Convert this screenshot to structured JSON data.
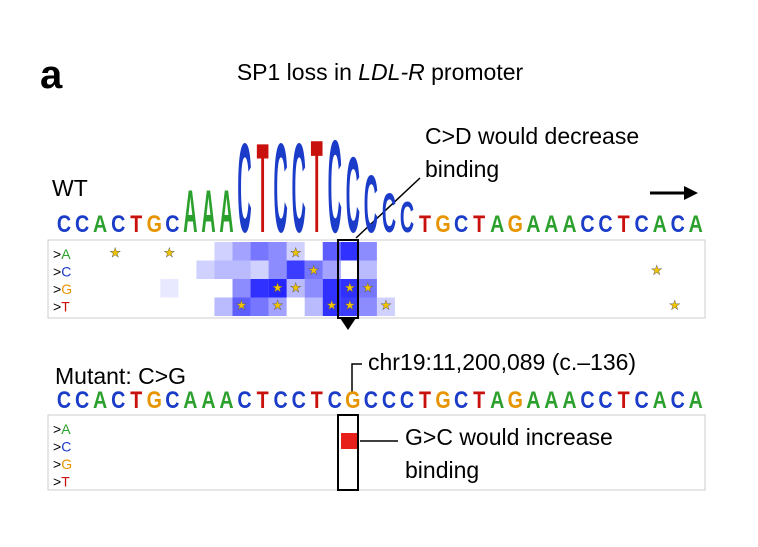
{
  "panel": "a",
  "title": {
    "before": "SP1 loss in ",
    "italic": "LDL-R",
    "after": " promoter"
  },
  "wt": {
    "label": "WT",
    "letters": [
      "C",
      "C",
      "A",
      "C",
      "T",
      "G",
      "C",
      "A",
      "A",
      "A",
      "C",
      "T",
      "C",
      "C",
      "T",
      "C",
      "C",
      "C",
      "C",
      "C",
      "T",
      "G",
      "C",
      "T",
      "A",
      "G",
      "A",
      "A",
      "A",
      "C",
      "C",
      "T",
      "C",
      "A",
      "C",
      "A"
    ],
    "heights": [
      1,
      1,
      1,
      1,
      1,
      1,
      1,
      2.5,
      2.5,
      2.5,
      5.3,
      5.3,
      5.3,
      5.3,
      5.5,
      5.5,
      4.5,
      3.4,
      2.3,
      1.8,
      1,
      1,
      1,
      1,
      1,
      1,
      1,
      1,
      1,
      1,
      1,
      1,
      1,
      1,
      1,
      1
    ]
  },
  "callout_top": {
    "line1": "C>D would decrease",
    "line2": "binding"
  },
  "rows": [
    ">A",
    ">C",
    ">G",
    ">T"
  ],
  "mutant": {
    "label": "Mutant: C>G",
    "position": "chr19:11,200,089 (c.–136)",
    "letters": [
      "C",
      "C",
      "A",
      "C",
      "T",
      "G",
      "C",
      "A",
      "A",
      "A",
      "C",
      "T",
      "C",
      "C",
      "T",
      "C",
      "G",
      "C",
      "C",
      "C",
      "T",
      "G",
      "C",
      "T",
      "A",
      "G",
      "A",
      "A",
      "A",
      "C",
      "C",
      "T",
      "C",
      "A",
      "C",
      "A"
    ]
  },
  "callout_bottom": {
    "line1": "G>C would increase",
    "line2": "binding"
  }
}
